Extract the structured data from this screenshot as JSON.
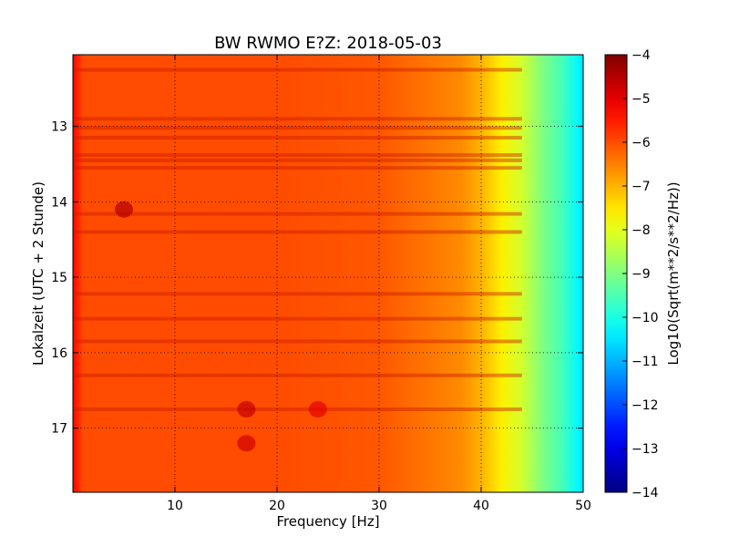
{
  "chart_data": {
    "type": "heatmap",
    "title": "BW RWMO E?Z: 2018-05-03",
    "xlabel": "Frequency [Hz]",
    "ylabel": "Lokalzeit (UTC + 2 Stunde)",
    "xlim": [
      0,
      50
    ],
    "ylim": [
      17.85,
      12.05
    ],
    "y_inverted": true,
    "x_ticks": [
      10,
      20,
      30,
      40,
      50
    ],
    "y_ticks": [
      13,
      14,
      15,
      16,
      17
    ],
    "grid": true,
    "colormap": "jet",
    "colorbar": {
      "label": "Log10(Sqrt(m**2/s**2/Hz))",
      "range": [
        -14,
        -4
      ],
      "ticks": [
        -4,
        -5,
        -6,
        -7,
        -8,
        -9,
        -10,
        -11,
        -12,
        -13,
        -14
      ]
    },
    "z_profile_by_frequency": {
      "frequency_hz": [
        0,
        0.5,
        1,
        5,
        10,
        20,
        30,
        38,
        40,
        42,
        44,
        46,
        48,
        49.5,
        50
      ],
      "log10_amplitude": [
        -5.3,
        -5.6,
        -6.0,
        -6.0,
        -6.0,
        -6.0,
        -6.1,
        -6.6,
        -7.0,
        -7.6,
        -8.2,
        -9.0,
        -9.6,
        -10.3,
        -10.6
      ]
    },
    "stronger_bands_time_hours": [
      12.25,
      12.9,
      13.02,
      13.15,
      13.38,
      13.45,
      13.55,
      14.16,
      14.4,
      15.22,
      15.55,
      15.85,
      16.3,
      16.75
    ],
    "local_features": [
      {
        "frequency_hz": 17,
        "time_hours": 16.75,
        "log10_amplitude": -4.7
      },
      {
        "frequency_hz": 17,
        "time_hours": 17.2,
        "log10_amplitude": -4.8
      },
      {
        "frequency_hz": 24,
        "time_hours": 16.75,
        "log10_amplitude": -5.0
      },
      {
        "frequency_hz": 5,
        "time_hours": 14.1,
        "log10_amplitude": -4.5
      }
    ]
  },
  "colors": {
    "frame": "#000000",
    "grid": "#000000",
    "background": "#ffffff"
  }
}
